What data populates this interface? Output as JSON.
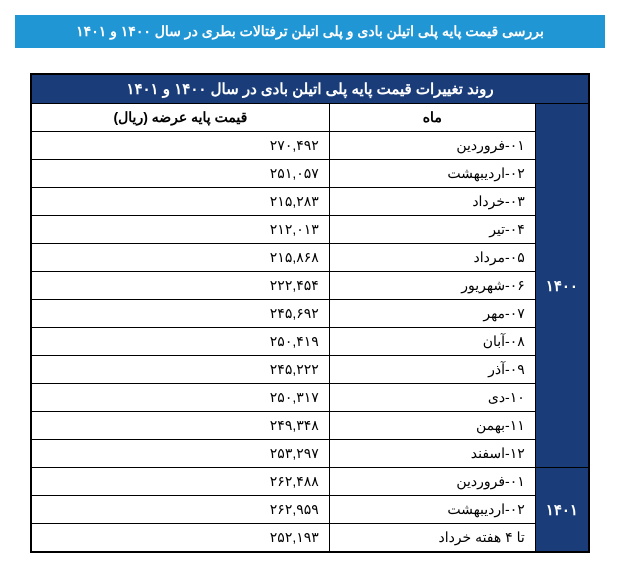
{
  "title": "بررسی قیمت پایه پلی اتیلن بادی و پلی اتیلن ترفتالات بطری در سال ۱۴۰۰ و ۱۴۰۱",
  "table": {
    "header": "روند تغییرات قیمت پایه پلی اتیلن بادی در سال ۱۴۰۰ و ۱۴۰۱",
    "columns": {
      "month": "ماه",
      "price": "قیمت پایه عرضه (ریال)"
    },
    "years": {
      "y1400": "۱۴۰۰",
      "y1401": "۱۴۰۱"
    },
    "rows1400": [
      {
        "month": "۰۱-فروردین",
        "price": "۲۷۰,۴۹۲"
      },
      {
        "month": "۰۲-اردیبهشت",
        "price": "۲۵۱,۰۵۷"
      },
      {
        "month": "۰۳-خرداد",
        "price": "۲۱۵,۲۸۳"
      },
      {
        "month": "۰۴-تیر",
        "price": "۲۱۲,۰۱۳"
      },
      {
        "month": "۰۵-مرداد",
        "price": "۲۱۵,۸۶۸"
      },
      {
        "month": "۰۶-شهریور",
        "price": "۲۲۲,۴۵۴"
      },
      {
        "month": "۰۷-مهر",
        "price": "۲۴۵,۶۹۲"
      },
      {
        "month": "۰۸-آبان",
        "price": "۲۵۰,۴۱۹"
      },
      {
        "month": "۰۹-آذر",
        "price": "۲۴۵,۲۲۲"
      },
      {
        "month": "۱۰-دی",
        "price": "۲۵۰,۳۱۷"
      },
      {
        "month": "۱۱-بهمن",
        "price": "۲۴۹,۳۴۸"
      },
      {
        "month": "۱۲-اسفند",
        "price": "۲۵۳,۲۹۷"
      }
    ],
    "rows1401": [
      {
        "month": "۰۱-فروردین",
        "price": "۲۶۲,۴۸۸"
      },
      {
        "month": "۰۲-اردیبهشت",
        "price": "۲۶۲,۹۵۹"
      },
      {
        "month": "تا ۴ هفته خرداد",
        "price": "۲۵۲,۱۹۳"
      }
    ]
  },
  "colors": {
    "title_bg": "#2196d4",
    "header_bg": "#1a3d7a",
    "text_white": "#ffffff",
    "border": "#000000"
  }
}
